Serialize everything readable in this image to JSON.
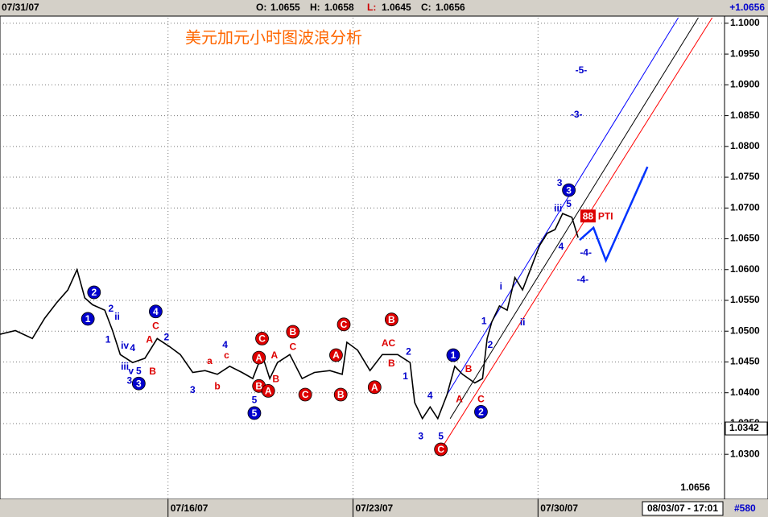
{
  "header": {
    "date": "07/31/07",
    "ohlc": [
      {
        "label": "O:",
        "value": 1.0655
      },
      {
        "label": "H:",
        "value": 1.0658
      },
      {
        "label": "L:",
        "value": 1.0645
      },
      {
        "label": "C:",
        "value": 1.0656
      }
    ],
    "change": "+1.0656"
  },
  "chart_data": {
    "type": "line",
    "title": "美元加元小时图波浪分析",
    "x": [
      0,
      10,
      21,
      29,
      37,
      44,
      50,
      55,
      60,
      68,
      73,
      78,
      86,
      94,
      102,
      110,
      117,
      125,
      133,
      141,
      149,
      157,
      164,
      170,
      175,
      180,
      188,
      196,
      204,
      214,
      222,
      225,
      232,
      240,
      248,
      258,
      266,
      269,
      274,
      279,
      284,
      290,
      295,
      300,
      308,
      313,
      316,
      319,
      324,
      329,
      334,
      339,
      345,
      350,
      355,
      360,
      365,
      371,
      375
    ],
    "series": [
      {
        "color": "#000000",
        "values": [
          1.0495,
          1.0501,
          1.0488,
          1.0521,
          1.0547,
          1.0567,
          1.06,
          1.0554,
          1.0543,
          1.0534,
          1.0501,
          1.0462,
          1.0449,
          1.0456,
          1.0488,
          1.0475,
          1.0462,
          1.0433,
          1.0436,
          1.043,
          1.0443,
          1.0433,
          1.0423,
          1.0462,
          1.0423,
          1.0449,
          1.0462,
          1.0423,
          1.0433,
          1.0436,
          1.043,
          1.0482,
          1.0469,
          1.0436,
          1.0462,
          1.0462,
          1.0449,
          1.0384,
          1.0358,
          1.0377,
          1.0358,
          1.0397,
          1.0443,
          1.043,
          1.0416,
          1.0423,
          1.0488,
          1.0515,
          1.0541,
          1.0534,
          1.0587,
          1.0567,
          1.0606,
          1.0639,
          1.0659,
          1.0665,
          1.0691,
          1.0685,
          1.0652
        ]
      }
    ],
    "xlim": [
      0,
      470
    ],
    "xticks": [
      {
        "value": 109,
        "label": "07/16/07"
      },
      {
        "value": 229,
        "label": "07/23/07"
      },
      {
        "value": 349,
        "label": "07/30/07"
      }
    ],
    "ylim": [
      1.0227,
      1.1009
    ],
    "yticks": [
      {
        "value": 1.1,
        "label": "1.1000"
      },
      {
        "value": 1.095,
        "label": "1.0950"
      },
      {
        "value": 1.09,
        "label": "1.0900"
      },
      {
        "value": 1.085,
        "label": "1.0850"
      },
      {
        "value": 1.08,
        "label": "1.0800"
      },
      {
        "value": 1.075,
        "label": "1.0750"
      },
      {
        "value": 1.07,
        "label": "1.0700"
      },
      {
        "value": 1.065,
        "label": "1.0650"
      },
      {
        "value": 1.06,
        "label": "1.0600"
      },
      {
        "value": 1.055,
        "label": "1.0550"
      },
      {
        "value": 1.05,
        "label": "1.0500"
      },
      {
        "value": 1.045,
        "label": "1.0450"
      },
      {
        "value": 1.04,
        "label": "1.0400"
      },
      {
        "value": 1.035,
        "label": "1.0350"
      },
      {
        "value": 1.03,
        "label": "1.0300"
      }
    ],
    "grid": true,
    "colors": {
      "blue": "#0000cc",
      "red": "#dd0000",
      "title": "#ff6600"
    },
    "annotations": [
      {
        "text": "2",
        "x": 61,
        "y": 1.0563,
        "style": "circle-blue"
      },
      {
        "text": "1",
        "x": 57,
        "y": 1.052,
        "style": "circle-blue"
      },
      {
        "text": "4",
        "x": 101,
        "y": 1.0532,
        "style": "circle-blue"
      },
      {
        "text": "3",
        "x": 90,
        "y": 1.0415,
        "style": "circle-blue"
      },
      {
        "text": "5",
        "x": 165,
        "y": 1.0367,
        "style": "circle-blue"
      },
      {
        "text": "1",
        "x": 294,
        "y": 1.0461,
        "style": "circle-blue"
      },
      {
        "text": "2",
        "x": 312,
        "y": 1.0369,
        "style": "circle-blue"
      },
      {
        "text": "3",
        "x": 369,
        "y": 1.0729,
        "style": "circle-blue"
      },
      {
        "text": "C",
        "x": 170,
        "y": 1.0488,
        "style": "circle-red"
      },
      {
        "text": "B",
        "x": 190,
        "y": 1.0499,
        "style": "circle-red"
      },
      {
        "text": "A",
        "x": 168,
        "y": 1.0457,
        "style": "circle-red"
      },
      {
        "text": "B",
        "x": 168,
        "y": 1.0411,
        "style": "circle-red"
      },
      {
        "text": "A",
        "x": 174,
        "y": 1.0403,
        "style": "circle-red"
      },
      {
        "text": "C",
        "x": 198,
        "y": 1.0397,
        "style": "circle-red"
      },
      {
        "text": "A",
        "x": 218,
        "y": 1.0461,
        "style": "circle-red"
      },
      {
        "text": "B",
        "x": 221,
        "y": 1.0397,
        "style": "circle-red"
      },
      {
        "text": "C",
        "x": 223,
        "y": 1.0511,
        "style": "circle-red"
      },
      {
        "text": "B",
        "x": 254,
        "y": 1.0519,
        "style": "circle-red"
      },
      {
        "text": "A",
        "x": 243,
        "y": 1.0409,
        "style": "circle-red"
      },
      {
        "text": "C",
        "x": 286,
        "y": 1.0308,
        "style": "circle-red"
      },
      {
        "text": "2",
        "x": 72,
        "y": 1.0537,
        "style": "blue"
      },
      {
        "text": "ii",
        "x": 76,
        "y": 1.0524,
        "style": "blue"
      },
      {
        "text": "1",
        "x": 70,
        "y": 1.0487,
        "style": "blue"
      },
      {
        "text": "iv",
        "x": 81,
        "y": 1.0477,
        "style": "blue"
      },
      {
        "text": "4",
        "x": 86,
        "y": 1.0473,
        "style": "blue"
      },
      {
        "text": "iii",
        "x": 81,
        "y": 1.0443,
        "style": "blue"
      },
      {
        "text": "v",
        "x": 85,
        "y": 1.0436,
        "style": "blue"
      },
      {
        "text": "5",
        "x": 90,
        "y": 1.0436,
        "style": "blue"
      },
      {
        "text": "3",
        "x": 84,
        "y": 1.042,
        "style": "blue"
      },
      {
        "text": "2",
        "x": 108,
        "y": 1.0491,
        "style": "blue"
      },
      {
        "text": "3",
        "x": 125,
        "y": 1.0405,
        "style": "blue"
      },
      {
        "text": "4",
        "x": 146,
        "y": 1.0478,
        "style": "blue"
      },
      {
        "text": "5",
        "x": 165,
        "y": 1.0389,
        "style": "blue"
      },
      {
        "text": "2",
        "x": 265,
        "y": 1.0467,
        "style": "blue"
      },
      {
        "text": "1",
        "x": 263,
        "y": 1.0427,
        "style": "blue"
      },
      {
        "text": "4",
        "x": 279,
        "y": 1.0396,
        "style": "blue"
      },
      {
        "text": "3",
        "x": 273,
        "y": 1.033,
        "style": "blue"
      },
      {
        "text": "5",
        "x": 286,
        "y": 1.033,
        "style": "blue"
      },
      {
        "text": "1",
        "x": 314,
        "y": 1.0517,
        "style": "blue"
      },
      {
        "text": "2",
        "x": 318,
        "y": 1.0478,
        "style": "blue"
      },
      {
        "text": "i",
        "x": 325,
        "y": 1.0573,
        "style": "blue"
      },
      {
        "text": "ii",
        "x": 339,
        "y": 1.0515,
        "style": "blue"
      },
      {
        "text": "3",
        "x": 363,
        "y": 1.0741,
        "style": "blue"
      },
      {
        "text": "iii",
        "x": 362,
        "y": 1.07,
        "style": "blue"
      },
      {
        "text": "5",
        "x": 369,
        "y": 1.0707,
        "style": "blue"
      },
      {
        "text": "4",
        "x": 364,
        "y": 1.0638,
        "style": "blue"
      },
      {
        "text": "-5-",
        "x": 377,
        "y": 1.0924,
        "style": "blue"
      },
      {
        "text": "-3-",
        "x": 374,
        "y": 1.0852,
        "style": "blue"
      },
      {
        "text": "-4-",
        "x": 380,
        "y": 1.0628,
        "style": "blue"
      },
      {
        "text": "-4-",
        "x": 378,
        "y": 1.0584,
        "style": "blue"
      },
      {
        "text": "A",
        "x": 97,
        "y": 1.0487,
        "style": "red"
      },
      {
        "text": "C",
        "x": 101,
        "y": 1.0509,
        "style": "red"
      },
      {
        "text": "B",
        "x": 99,
        "y": 1.0435,
        "style": "red"
      },
      {
        "text": "a",
        "x": 136,
        "y": 1.0452,
        "style": "red"
      },
      {
        "text": "c",
        "x": 147,
        "y": 1.0461,
        "style": "red"
      },
      {
        "text": "b",
        "x": 141,
        "y": 1.0411,
        "style": "red"
      },
      {
        "text": "A",
        "x": 178,
        "y": 1.0461,
        "style": "red"
      },
      {
        "text": "B",
        "x": 179,
        "y": 1.0423,
        "style": "red"
      },
      {
        "text": "C",
        "x": 190,
        "y": 1.0475,
        "style": "red"
      },
      {
        "text": "AC",
        "x": 252,
        "y": 1.0481,
        "style": "red"
      },
      {
        "text": "B",
        "x": 254,
        "y": 1.0448,
        "style": "red"
      },
      {
        "text": "A",
        "x": 298,
        "y": 1.039,
        "style": "red"
      },
      {
        "text": "B",
        "x": 304,
        "y": 1.0439,
        "style": "red"
      },
      {
        "text": "C",
        "x": 312,
        "y": 1.039,
        "style": "red"
      }
    ],
    "trendlines": [
      {
        "color": "#0000ff",
        "x1": 290,
        "y1": 1.0397,
        "x2": 440,
        "y2": 1.1009
      },
      {
        "color": "#000000",
        "x1": 292,
        "y1": 1.0358,
        "x2": 453,
        "y2": 1.1009
      },
      {
        "color": "#ff0000",
        "x1": 286,
        "y1": 1.0308,
        "x2": 462,
        "y2": 1.1009
      }
    ],
    "projection": {
      "color": "#0033ff",
      "x": [
        376,
        385,
        393,
        420
      ],
      "y": [
        1.0648,
        1.0668,
        1.0615,
        1.0767
      ]
    },
    "markers": {
      "low": 1.0342,
      "last": 1.0656
    },
    "pti": {
      "value": 88,
      "label": "PTI",
      "x": 377,
      "y": 1.0687
    }
  },
  "footer": {
    "timestamp": "08/03/07 - 17:01",
    "id": "#580"
  }
}
